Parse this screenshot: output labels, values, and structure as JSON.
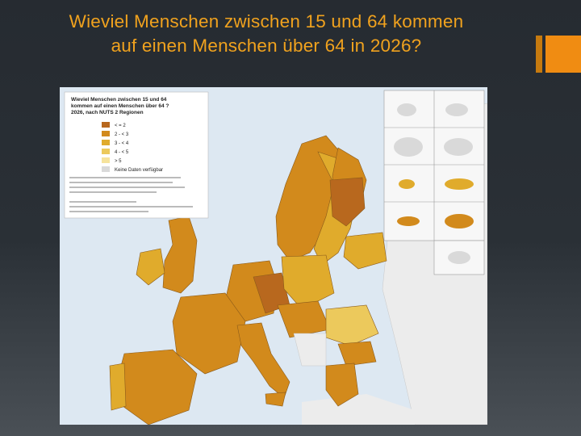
{
  "slide": {
    "title_line1": "Wieviel Menschen zwischen 15 und 64 kommen",
    "title_line2": "auf einen Menschen über 64 in 2026?"
  },
  "map": {
    "legend": {
      "title_line1": "Wieviel Menschen zwischen 15 und 64",
      "title_line2": "kommen auf einen Menschen über 64 ?",
      "title_line3": "2026, nach NUTS 2 Regionen",
      "classes": [
        {
          "label": "< = 2",
          "color": "#b8681e"
        },
        {
          "label": "2 - < 3",
          "color": "#d28a1c"
        },
        {
          "label": "3 - < 4",
          "color": "#e0ab2c"
        },
        {
          "label": "4 - < 5",
          "color": "#ecc95c"
        },
        {
          "label": "> 5",
          "color": "#f6e39c"
        },
        {
          "label": "Keine Daten verfügbar",
          "color": "#d9d9d9"
        }
      ]
    },
    "colors": {
      "sea": "#dde8f2",
      "non_eu_land": "#ececec",
      "border": "#8a5a1a"
    }
  }
}
